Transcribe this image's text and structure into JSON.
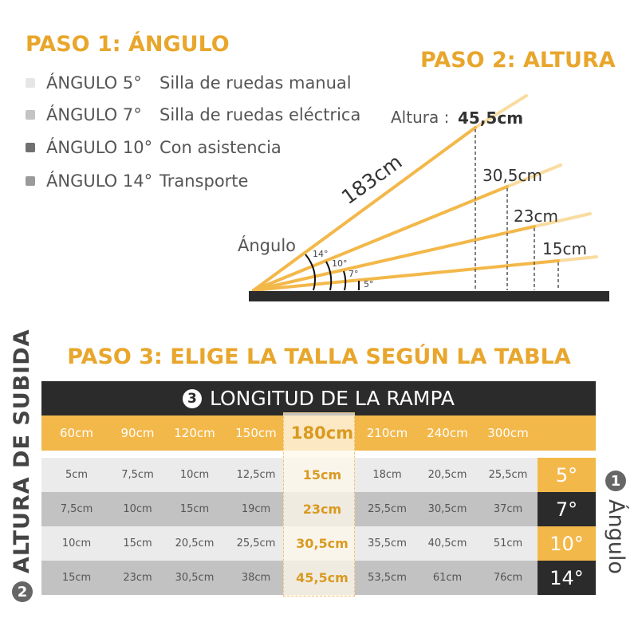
{
  "step1": {
    "title": "PASO 1: ÁNGULO",
    "legend": [
      {
        "angle": "ÁNGULO 5°",
        "use": "Silla de ruedas manual",
        "color": "#e6e6e6"
      },
      {
        "angle": "ÁNGULO 7°",
        "use": "Silla de ruedas eléctrica",
        "color": "#c4c4c4"
      },
      {
        "angle": "ÁNGULO 10°",
        "use": "Con asistencia",
        "color": "#707070"
      },
      {
        "angle": "ÁNGULO 14°",
        "use": "Transporte",
        "color": "#9a9a9a"
      }
    ]
  },
  "step2": {
    "title": "PASO 2: ALTURA",
    "height_label": "Altura :",
    "length": "183cm",
    "angle_label": "Ángulo",
    "heights": [
      "45,5cm",
      "30,5cm",
      "23cm",
      "15cm"
    ],
    "angles": [
      "14°",
      "10°",
      "7°",
      "5°"
    ]
  },
  "step3": {
    "title": "PASO 3: ELIGE LA TALLA SEGÚN LA TABLA",
    "header_num": "3",
    "header": "LONGITUD DE LA RAMPA",
    "lengths": [
      "60cm",
      "90cm",
      "120cm",
      "150cm",
      "180cm",
      "210cm",
      "240cm",
      "300cm"
    ],
    "rows": [
      {
        "angle": "5°",
        "values": [
          "5cm",
          "7,5cm",
          "10cm",
          "12,5cm",
          "15cm",
          "18cm",
          "20,5cm",
          "25,5cm"
        ]
      },
      {
        "angle": "7°",
        "values": [
          "7,5cm",
          "10cm",
          "15cm",
          "19cm",
          "23cm",
          "25,5cm",
          "30,5cm",
          "37cm"
        ]
      },
      {
        "angle": "10°",
        "values": [
          "10cm",
          "15cm",
          "20,5cm",
          "25,5cm",
          "30,5cm",
          "35,5cm",
          "40,5cm",
          "51cm"
        ]
      },
      {
        "angle": "14°",
        "values": [
          "15cm",
          "23cm",
          "30,5cm",
          "38cm",
          "45,5cm",
          "53,5cm",
          "61cm",
          "76cm"
        ]
      }
    ],
    "left_num": "2",
    "left_label": "ALTURA DE SUBIDA",
    "right_num": "1",
    "right_label": "Ángulo"
  },
  "colors": {
    "accent": "#f3b84a",
    "dark": "#2b2b2b"
  }
}
